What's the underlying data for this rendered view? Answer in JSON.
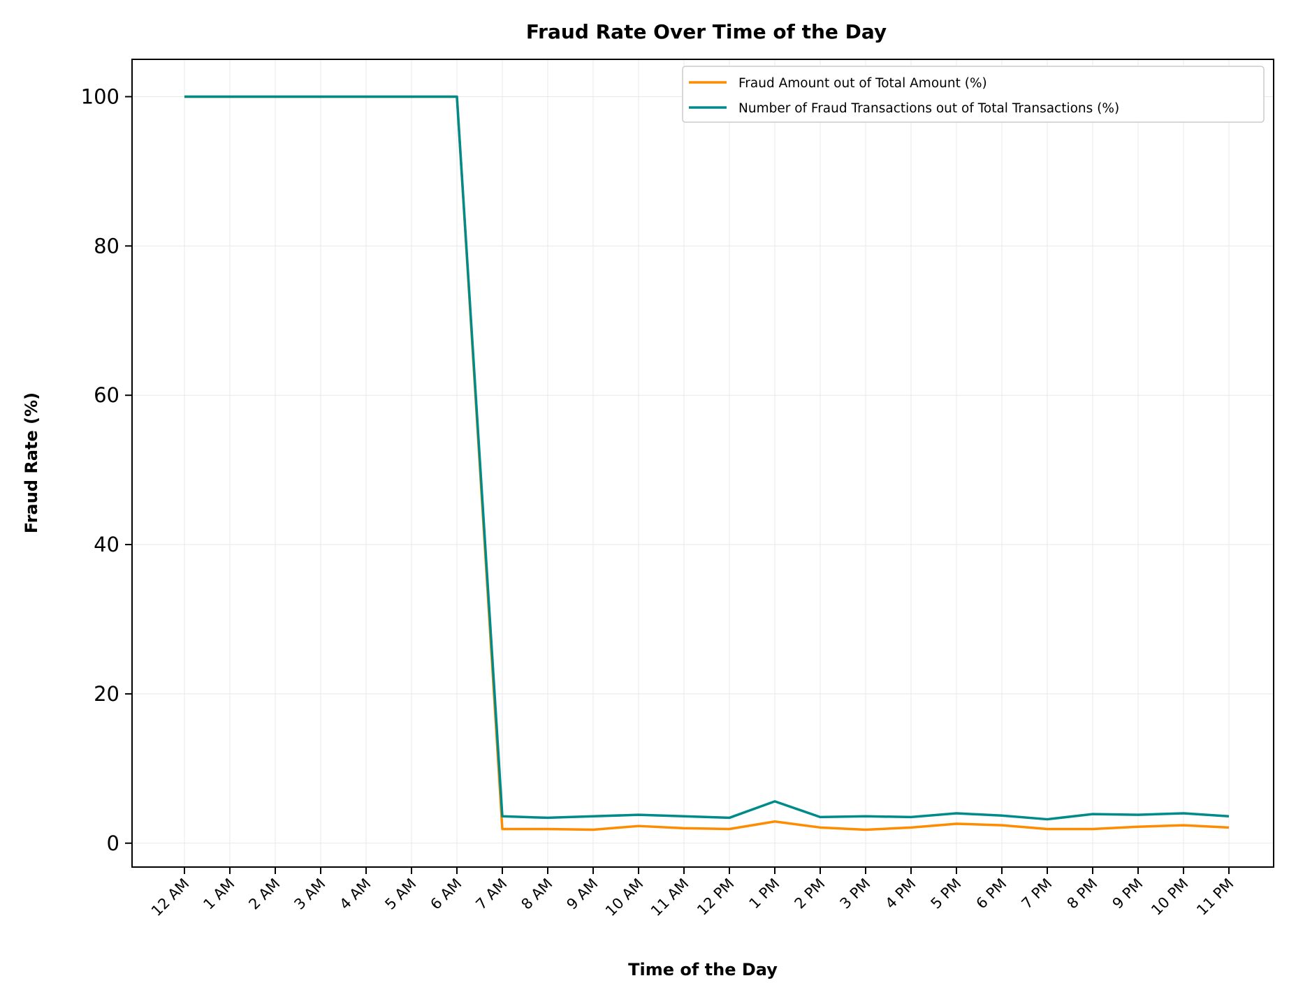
{
  "chart_data": {
    "type": "line",
    "title": "Fraud Rate Over Time of the Day",
    "xlabel": "Time of the Day",
    "ylabel": "Fraud Rate (%)",
    "categories": [
      "12 AM",
      "1 AM",
      "2 AM",
      "3 AM",
      "4 AM",
      "5 AM",
      "6 AM",
      "7 AM",
      "8 AM",
      "9 AM",
      "10 AM",
      "11 AM",
      "12 PM",
      "1 PM",
      "2 PM",
      "3 PM",
      "4 PM",
      "5 PM",
      "6 PM",
      "7 PM",
      "8 PM",
      "9 PM",
      "10 PM",
      "11 PM"
    ],
    "ylim": [
      -3.2,
      105
    ],
    "yticks": [
      0,
      20,
      40,
      60,
      80,
      100
    ],
    "grid": true,
    "legend_position": "top-right",
    "series": [
      {
        "name": "Fraud Amount out of Total Amount (%)",
        "color": "#ff8c00",
        "values": [
          100,
          100,
          100,
          100,
          100,
          100,
          100,
          1.9,
          1.9,
          1.8,
          2.3,
          2.0,
          1.9,
          2.9,
          2.1,
          1.8,
          2.1,
          2.6,
          2.4,
          1.9,
          1.9,
          2.2,
          2.4,
          2.1
        ]
      },
      {
        "name": "Number of Fraud Transactions out of Total Transactions (%)",
        "color": "#008b8b",
        "values": [
          100,
          100,
          100,
          100,
          100,
          100,
          100,
          3.6,
          3.4,
          3.6,
          3.8,
          3.6,
          3.4,
          5.6,
          3.5,
          3.6,
          3.5,
          4.0,
          3.7,
          3.2,
          3.9,
          3.8,
          4.0,
          3.6
        ]
      }
    ]
  }
}
